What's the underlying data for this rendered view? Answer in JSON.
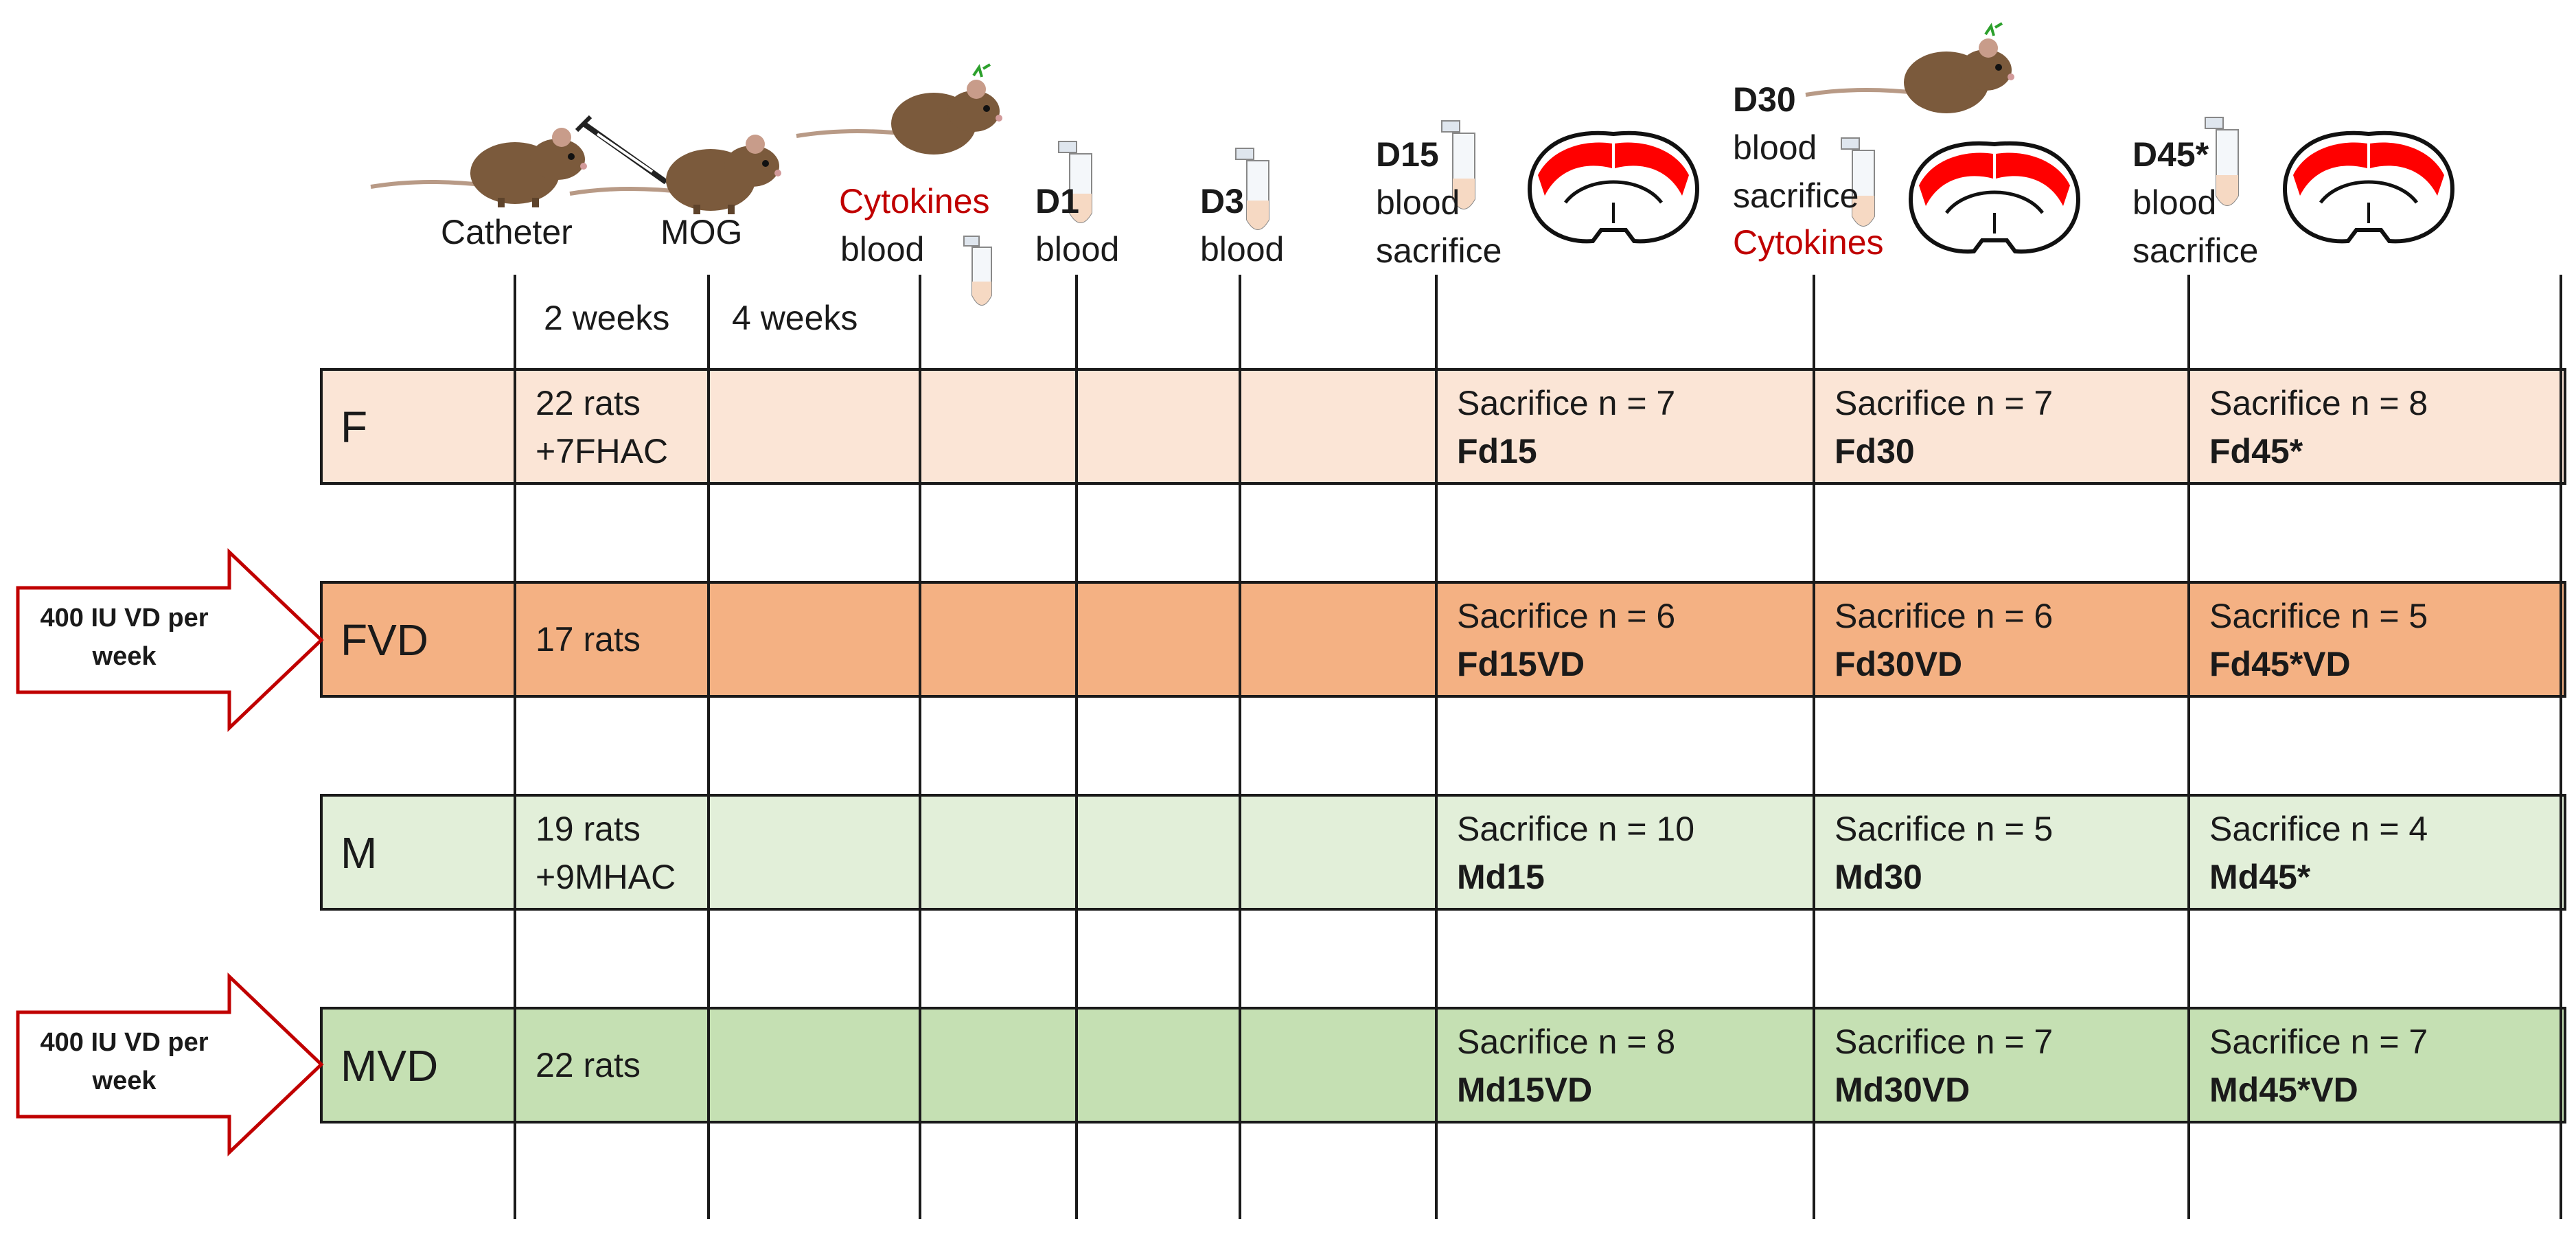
{
  "header": {
    "catheter": "Catheter",
    "mog": "MOG",
    "cytokines1": "Cytokines",
    "blood1": "blood",
    "d1": "D1",
    "d1_blood": "blood",
    "d3": "D3",
    "d3_blood": "blood",
    "d15": "D15",
    "d15_blood": "blood",
    "d15_sac": "sacrifice",
    "d30": "D30",
    "d30_blood": "blood",
    "d30_sac": "sacrifice",
    "d30_cyto": "Cytokines",
    "d45": "D45*",
    "d45_blood": "blood",
    "d45_sac": "sacrifice",
    "weeks2": "2 weeks",
    "weeks4": "4 weeks"
  },
  "rows": [
    {
      "group": "F",
      "rats": "22 rats",
      "rats2": "+7FHAC",
      "s15": "Sacrifice n = 7",
      "c15": "Fd15",
      "s30": "Sacrifice n = 7",
      "c30": "Fd30",
      "s45": "Sacrifice n = 8",
      "c45": "Fd45*",
      "color": "#fbe5d6"
    },
    {
      "group": "FVD",
      "rats": "17 rats",
      "rats2": "",
      "s15": "Sacrifice n = 6",
      "c15": "Fd15VD",
      "s30": "Sacrifice n = 6",
      "c30": "Fd30VD",
      "s45": "Sacrifice n = 5",
      "c45": "Fd45*VD",
      "color": "#f4b183"
    },
    {
      "group": "M",
      "rats": "19 rats",
      "rats2": "+9MHAC",
      "s15": "Sacrifice n = 10",
      "c15": "Md15",
      "s30": "Sacrifice n = 5",
      "c30": "Md30",
      "s45": "Sacrifice n = 4",
      "c45": "Md45*",
      "color": "#e2efd9"
    },
    {
      "group": "MVD",
      "rats": "22 rats",
      "rats2": "",
      "s15": "Sacrifice n = 8",
      "c15": "Md15VD",
      "s30": "Sacrifice n = 7",
      "c30": "Md30VD",
      "s45": "Sacrifice n = 7",
      "c45": "Md45*VD",
      "color": "#c5e0b3"
    }
  ],
  "arrows": [
    {
      "line1": "400 IU VD per",
      "line2": "week"
    },
    {
      "line1": "400 IU VD per",
      "line2": "week"
    }
  ],
  "colors": {
    "red": "#c00000",
    "brain_lesion": "#ff0000",
    "rat": "#7b5a3c",
    "tube": "#f6d9c3"
  }
}
